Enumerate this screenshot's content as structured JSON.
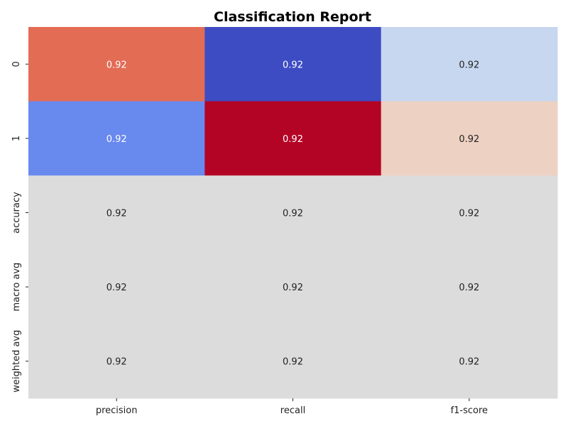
{
  "chart_data": {
    "type": "heatmap",
    "title": "Classification Report",
    "xlabel": "",
    "ylabel": "",
    "columns": [
      "precision",
      "recall",
      "f1-score"
    ],
    "rows": [
      "0",
      "1",
      "accuracy",
      "macro avg",
      "weighted avg"
    ],
    "cells": [
      [
        {
          "label": "0.92",
          "color": "#e36c55",
          "text_color": "#ffffff"
        },
        {
          "label": "0.92",
          "color": "#3d4cc3",
          "text_color": "#ffffff"
        },
        {
          "label": "0.92",
          "color": "#c7d7f0",
          "text_color": "#222222"
        }
      ],
      [
        {
          "label": "0.92",
          "color": "#6889ee",
          "text_color": "#ffffff"
        },
        {
          "label": "0.92",
          "color": "#b40426",
          "text_color": "#ffffff"
        },
        {
          "label": "0.92",
          "color": "#edd1c2",
          "text_color": "#222222"
        }
      ],
      [
        {
          "label": "0.92",
          "color": "#dcdcdc",
          "text_color": "#222222"
        },
        {
          "label": "0.92",
          "color": "#dcdcdc",
          "text_color": "#222222"
        },
        {
          "label": "0.92",
          "color": "#dcdcdc",
          "text_color": "#222222"
        }
      ],
      [
        {
          "label": "0.92",
          "color": "#dcdcdc",
          "text_color": "#222222"
        },
        {
          "label": "0.92",
          "color": "#dcdcdc",
          "text_color": "#222222"
        },
        {
          "label": "0.92",
          "color": "#dcdcdc",
          "text_color": "#222222"
        }
      ],
      [
        {
          "label": "0.92",
          "color": "#dcdcdc",
          "text_color": "#222222"
        },
        {
          "label": "0.92",
          "color": "#dcdcdc",
          "text_color": "#222222"
        },
        {
          "label": "0.92",
          "color": "#dcdcdc",
          "text_color": "#222222"
        }
      ]
    ],
    "colormap": "coolwarm",
    "colorbar": false
  }
}
